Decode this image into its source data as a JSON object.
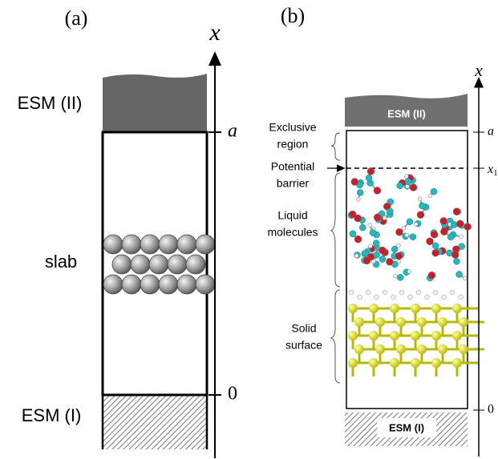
{
  "panels": [
    {
      "label": "(a)",
      "axis": {
        "name": "x",
        "ticks": [
          "a",
          "0"
        ]
      },
      "top_electrode": "ESM (II)",
      "bottom_electrode": "ESM (I)",
      "content": "slab"
    },
    {
      "label": "(b)",
      "axis": {
        "name": "x",
        "ticks": [
          "a",
          {
            "tick": "x",
            "subscript": "1"
          },
          "0"
        ]
      },
      "top_electrode": "ESM (II)",
      "bottom_electrode": "ESM (I)",
      "regions": [
        [
          "Exclusive",
          "region"
        ],
        [
          "Potential",
          "barrier"
        ],
        [
          "Liquid",
          "molecules"
        ],
        [
          "Solid",
          "surface"
        ]
      ]
    }
  ]
}
